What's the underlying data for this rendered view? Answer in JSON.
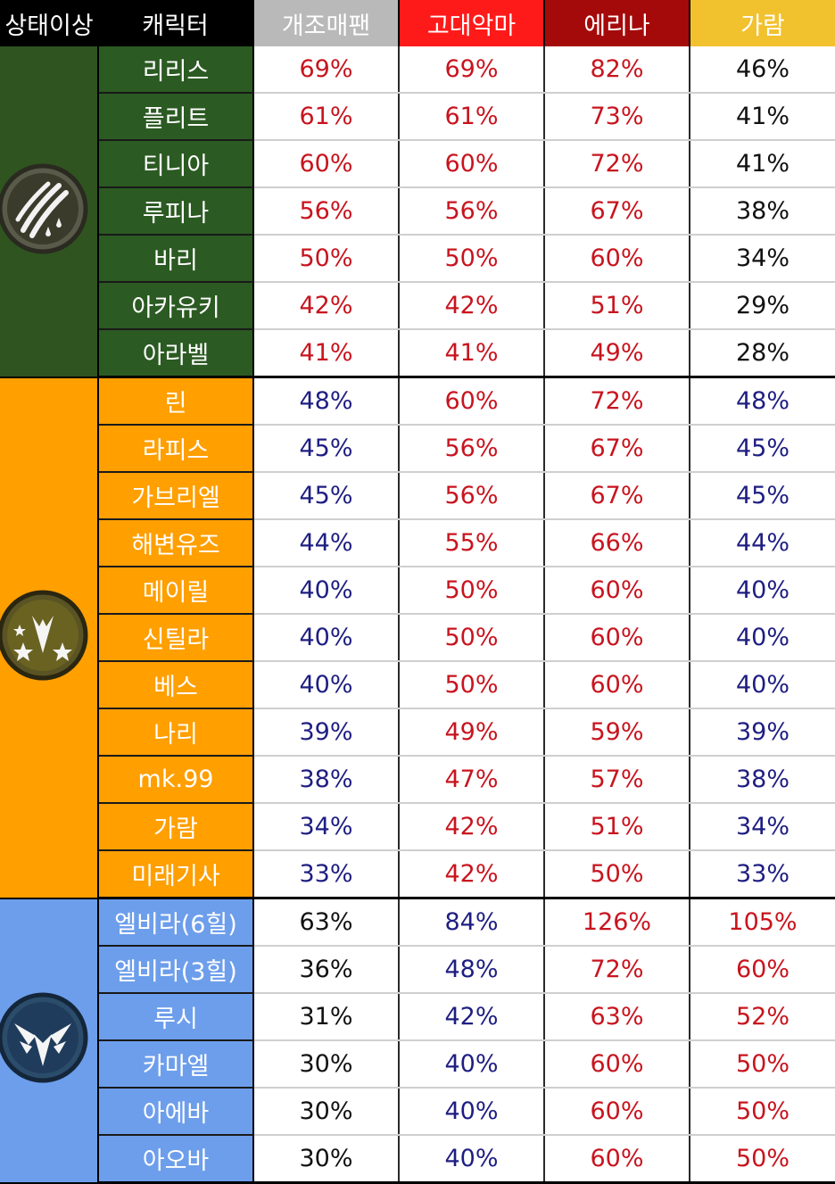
{
  "headers": {
    "status": "상태이상",
    "character": "캐릭터",
    "columns": [
      {
        "label": "개조매팬",
        "bg": "#b9b9b9"
      },
      {
        "label": "고대악마",
        "bg": "#ff1a1a"
      },
      {
        "label": "에리나",
        "bg": "#a50a0a"
      },
      {
        "label": "가람",
        "bg": "#f2c12e"
      }
    ]
  },
  "groups": [
    {
      "icon": "claw-slash-icon",
      "status_bg": "#2f5420",
      "name_bg": "#2b5a22",
      "name_color": "#ffffff",
      "rows": [
        {
          "name": "리리스",
          "values": [
            "69%",
            "69%",
            "82%",
            "46%"
          ],
          "colors": [
            "red",
            "red",
            "red",
            "black"
          ]
        },
        {
          "name": "플리트",
          "values": [
            "61%",
            "61%",
            "73%",
            "41%"
          ],
          "colors": [
            "red",
            "red",
            "red",
            "black"
          ]
        },
        {
          "name": "티니아",
          "values": [
            "60%",
            "60%",
            "72%",
            "41%"
          ],
          "colors": [
            "red",
            "red",
            "red",
            "black"
          ]
        },
        {
          "name": "루피나",
          "values": [
            "56%",
            "56%",
            "67%",
            "38%"
          ],
          "colors": [
            "red",
            "red",
            "red",
            "black"
          ]
        },
        {
          "name": "바리",
          "values": [
            "50%",
            "50%",
            "60%",
            "34%"
          ],
          "colors": [
            "red",
            "red",
            "red",
            "black"
          ]
        },
        {
          "name": "아카유키",
          "values": [
            "42%",
            "42%",
            "51%",
            "29%"
          ],
          "colors": [
            "red",
            "red",
            "red",
            "black"
          ]
        },
        {
          "name": "아라벨",
          "values": [
            "41%",
            "41%",
            "49%",
            "28%"
          ],
          "colors": [
            "red",
            "red",
            "red",
            "black"
          ]
        }
      ]
    },
    {
      "icon": "star-burst-icon",
      "status_bg": "#ff9f00",
      "name_bg": "#ff9f00",
      "name_color": "#ffffff",
      "rows": [
        {
          "name": "린",
          "values": [
            "48%",
            "60%",
            "72%",
            "48%"
          ],
          "colors": [
            "blue",
            "red",
            "red",
            "blue"
          ]
        },
        {
          "name": "라피스",
          "values": [
            "45%",
            "56%",
            "67%",
            "45%"
          ],
          "colors": [
            "blue",
            "red",
            "red",
            "blue"
          ]
        },
        {
          "name": "가브리엘",
          "values": [
            "45%",
            "56%",
            "67%",
            "45%"
          ],
          "colors": [
            "blue",
            "red",
            "red",
            "blue"
          ]
        },
        {
          "name": "해변유즈",
          "values": [
            "44%",
            "55%",
            "66%",
            "44%"
          ],
          "colors": [
            "blue",
            "red",
            "red",
            "blue"
          ]
        },
        {
          "name": "메이릴",
          "values": [
            "40%",
            "50%",
            "60%",
            "40%"
          ],
          "colors": [
            "blue",
            "red",
            "red",
            "blue"
          ]
        },
        {
          "name": "신틸라",
          "values": [
            "40%",
            "50%",
            "60%",
            "40%"
          ],
          "colors": [
            "blue",
            "red",
            "red",
            "blue"
          ]
        },
        {
          "name": "베스",
          "values": [
            "40%",
            "50%",
            "60%",
            "40%"
          ],
          "colors": [
            "blue",
            "red",
            "red",
            "blue"
          ]
        },
        {
          "name": "나리",
          "values": [
            "39%",
            "49%",
            "59%",
            "39%"
          ],
          "colors": [
            "blue",
            "red",
            "red",
            "blue"
          ]
        },
        {
          "name": "mk.99",
          "values": [
            "38%",
            "47%",
            "57%",
            "38%"
          ],
          "colors": [
            "blue",
            "red",
            "red",
            "blue"
          ]
        },
        {
          "name": "가람",
          "values": [
            "34%",
            "42%",
            "51%",
            "34%"
          ],
          "colors": [
            "blue",
            "red",
            "red",
            "blue"
          ]
        },
        {
          "name": "미래기사",
          "values": [
            "33%",
            "42%",
            "50%",
            "33%"
          ],
          "colors": [
            "blue",
            "red",
            "red",
            "blue"
          ]
        }
      ]
    },
    {
      "icon": "winged-emblem-icon",
      "status_bg": "#6d9eeb",
      "name_bg": "#6d9eeb",
      "name_color": "#ffffff",
      "rows": [
        {
          "name": "엘비라(6힐)",
          "values": [
            "63%",
            "84%",
            "126%",
            "105%"
          ],
          "colors": [
            "black",
            "blue",
            "red",
            "red"
          ]
        },
        {
          "name": "엘비라(3힐)",
          "values": [
            "36%",
            "48%",
            "72%",
            "60%"
          ],
          "colors": [
            "black",
            "blue",
            "red",
            "red"
          ]
        },
        {
          "name": "루시",
          "values": [
            "31%",
            "42%",
            "63%",
            "52%"
          ],
          "colors": [
            "black",
            "blue",
            "red",
            "red"
          ]
        },
        {
          "name": "카마엘",
          "values": [
            "30%",
            "40%",
            "60%",
            "50%"
          ],
          "colors": [
            "black",
            "blue",
            "red",
            "red"
          ]
        },
        {
          "name": "아에바",
          "values": [
            "30%",
            "40%",
            "60%",
            "50%"
          ],
          "colors": [
            "black",
            "blue",
            "red",
            "red"
          ]
        },
        {
          "name": "아오바",
          "values": [
            "30%",
            "40%",
            "60%",
            "50%"
          ],
          "colors": [
            "black",
            "blue",
            "red",
            "red"
          ]
        }
      ]
    }
  ]
}
